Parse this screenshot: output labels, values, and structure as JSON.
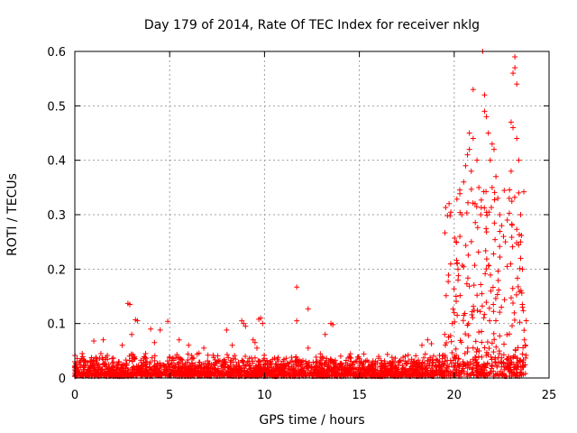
{
  "chart_data": {
    "type": "scatter",
    "title": "Day 179 of 2014, Rate Of TEC Index for receiver nklg",
    "xlabel": "GPS time / hours",
    "ylabel": "ROTI / TECUs",
    "xlim": [
      0,
      25
    ],
    "ylim": [
      0,
      0.6
    ],
    "x_ticks": [
      0,
      5,
      10,
      15,
      20,
      25
    ],
    "x_tick_labels": [
      "0",
      "5",
      "10",
      "15",
      "20",
      "25"
    ],
    "y_ticks": [
      0,
      0.1,
      0.2,
      0.3,
      0.4,
      0.5,
      0.6
    ],
    "y_tick_labels": [
      "0",
      "0.1",
      "0.2",
      "0.3",
      "0.4",
      "0.5",
      "0.6"
    ],
    "grid": true,
    "marker": "+",
    "color": "#ff0000",
    "series": [
      {
        "name": "ROTI",
        "points": [
          [
            2.8,
            0.137
          ],
          [
            2.9,
            0.135
          ],
          [
            3.2,
            0.107
          ],
          [
            3.3,
            0.105
          ],
          [
            4.9,
            0.104
          ],
          [
            4.0,
            0.09
          ],
          [
            3.0,
            0.08
          ],
          [
            1.0,
            0.068
          ],
          [
            1.5,
            0.07
          ],
          [
            2.5,
            0.06
          ],
          [
            4.5,
            0.088
          ],
          [
            5.5,
            0.07
          ],
          [
            4.2,
            0.065
          ],
          [
            6.0,
            0.06
          ],
          [
            6.8,
            0.055
          ],
          [
            8.0,
            0.088
          ],
          [
            8.3,
            0.06
          ],
          [
            8.8,
            0.105
          ],
          [
            8.9,
            0.1
          ],
          [
            9.0,
            0.095
          ],
          [
            9.7,
            0.108
          ],
          [
            9.8,
            0.11
          ],
          [
            9.9,
            0.1
          ],
          [
            9.4,
            0.07
          ],
          [
            9.5,
            0.065
          ],
          [
            9.6,
            0.055
          ],
          [
            11.7,
            0.167
          ],
          [
            11.7,
            0.105
          ],
          [
            12.3,
            0.127
          ],
          [
            12.3,
            0.055
          ],
          [
            13.5,
            0.1
          ],
          [
            13.6,
            0.098
          ],
          [
            13.2,
            0.08
          ],
          [
            18.3,
            0.06
          ],
          [
            18.6,
            0.07
          ],
          [
            18.8,
            0.063
          ],
          [
            19.5,
            0.08
          ],
          [
            19.7,
            0.075
          ],
          [
            19.9,
            0.1
          ],
          [
            20.0,
            0.12
          ],
          [
            20.1,
            0.15
          ],
          [
            20.2,
            0.18
          ],
          [
            20.2,
            0.2
          ],
          [
            20.3,
            0.26
          ],
          [
            20.4,
            0.3
          ],
          [
            20.5,
            0.36
          ],
          [
            20.6,
            0.39
          ],
          [
            20.7,
            0.41
          ],
          [
            20.8,
            0.42
          ],
          [
            20.8,
            0.45
          ],
          [
            20.9,
            0.38
          ],
          [
            21.0,
            0.44
          ],
          [
            21.0,
            0.53
          ],
          [
            21.1,
            0.32
          ],
          [
            21.2,
            0.4
          ],
          [
            21.3,
            0.35
          ],
          [
            21.4,
            0.3
          ],
          [
            21.5,
            0.6
          ],
          [
            21.6,
            0.52
          ],
          [
            21.6,
            0.49
          ],
          [
            21.7,
            0.48
          ],
          [
            21.8,
            0.45
          ],
          [
            21.9,
            0.4
          ],
          [
            22.0,
            0.43
          ],
          [
            22.0,
            0.35
          ],
          [
            22.1,
            0.42
          ],
          [
            22.2,
            0.37
          ],
          [
            22.3,
            0.33
          ],
          [
            22.4,
            0.3
          ],
          [
            22.5,
            0.28
          ],
          [
            22.6,
            0.26
          ],
          [
            22.7,
            0.25
          ],
          [
            22.8,
            0.29
          ],
          [
            22.9,
            0.33
          ],
          [
            23.0,
            0.38
          ],
          [
            23.0,
            0.47
          ],
          [
            23.1,
            0.46
          ],
          [
            23.1,
            0.56
          ],
          [
            23.2,
            0.59
          ],
          [
            23.2,
            0.57
          ],
          [
            23.3,
            0.54
          ],
          [
            23.3,
            0.44
          ],
          [
            23.4,
            0.4
          ],
          [
            23.4,
            0.34
          ],
          [
            23.5,
            0.3
          ],
          [
            23.5,
            0.25
          ],
          [
            23.6,
            0.2
          ],
          [
            23.6,
            0.13
          ],
          [
            23.7,
            0.07
          ]
        ]
      }
    ]
  }
}
